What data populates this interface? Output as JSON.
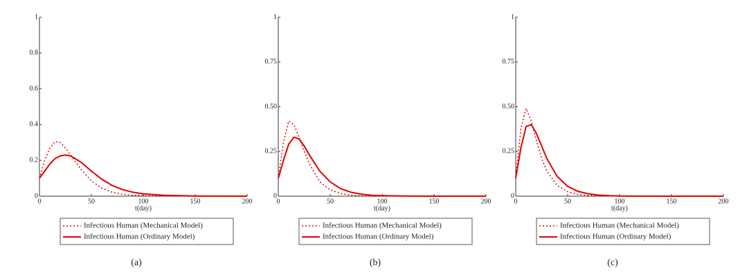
{
  "chart_data": [
    {
      "type": "line",
      "caption": "(a)",
      "xlabel": "t(day)",
      "x": [
        0,
        5,
        10,
        15,
        20,
        25,
        30,
        40,
        50,
        60,
        70,
        80,
        90,
        100,
        120,
        150,
        200
      ],
      "xlim": [
        0,
        200
      ],
      "xticks": [
        0,
        50,
        100,
        150,
        200
      ],
      "ylim": [
        0,
        1
      ],
      "yticks": [
        0,
        0.2,
        0.4,
        0.6,
        0.8,
        1
      ],
      "series": [
        {
          "name": "Infectious Human (Mechanical Model)",
          "color": "#e00000",
          "style": "dotted",
          "values": [
            0.1,
            0.2,
            0.27,
            0.305,
            0.3,
            0.27,
            0.23,
            0.15,
            0.085,
            0.045,
            0.022,
            0.011,
            0.005,
            0.003,
            0.001,
            0,
            0
          ]
        },
        {
          "name": "Infectious Human (Ordinary Model)",
          "color": "#e00000",
          "style": "solid",
          "values": [
            0.1,
            0.14,
            0.18,
            0.21,
            0.225,
            0.23,
            0.225,
            0.19,
            0.14,
            0.095,
            0.06,
            0.037,
            0.022,
            0.013,
            0.005,
            0.001,
            0
          ]
        }
      ]
    },
    {
      "type": "line",
      "caption": "(b)",
      "xlabel": "t(day)",
      "x": [
        0,
        5,
        10,
        15,
        20,
        25,
        30,
        40,
        50,
        60,
        70,
        80,
        90,
        100,
        120,
        150,
        200
      ],
      "xlim": [
        0,
        200
      ],
      "xticks": [
        0,
        50,
        100,
        150,
        200
      ],
      "ylim": [
        0,
        1
      ],
      "yticks": [
        0,
        0.25,
        {
          "value": 0.5,
          "label": "0.50"
        },
        0.75,
        1
      ],
      "series": [
        {
          "name": "Infectious Human (Mechanical Model)",
          "color": "#e00000",
          "style": "dotted",
          "values": [
            0.1,
            0.3,
            0.42,
            0.4,
            0.33,
            0.25,
            0.18,
            0.08,
            0.035,
            0.015,
            0.006,
            0.002,
            0.001,
            0,
            0,
            0,
            0
          ]
        },
        {
          "name": "Infectious Human (Ordinary Model)",
          "color": "#e00000",
          "style": "solid",
          "values": [
            0.1,
            0.2,
            0.29,
            0.33,
            0.32,
            0.28,
            0.23,
            0.14,
            0.08,
            0.042,
            0.022,
            0.011,
            0.005,
            0.003,
            0.001,
            0,
            0
          ]
        }
      ]
    },
    {
      "type": "line",
      "caption": "(c)",
      "xlabel": "t(day)",
      "x": [
        0,
        5,
        10,
        15,
        20,
        25,
        30,
        40,
        50,
        60,
        70,
        80,
        90,
        100,
        120,
        150,
        200
      ],
      "xlim": [
        0,
        200
      ],
      "xticks": [
        0,
        50,
        100,
        150,
        200
      ],
      "ylim": [
        0,
        1
      ],
      "yticks": [
        0,
        0.25,
        {
          "value": 0.5,
          "label": "0.50"
        },
        0.75,
        1
      ],
      "series": [
        {
          "name": "Infectious Human (Mechanical Model)",
          "color": "#e00000",
          "style": "dotted",
          "values": [
            0.1,
            0.38,
            0.49,
            0.42,
            0.31,
            0.21,
            0.14,
            0.06,
            0.025,
            0.01,
            0.004,
            0.002,
            0.001,
            0,
            0,
            0,
            0
          ]
        },
        {
          "name": "Infectious Human (Ordinary Model)",
          "color": "#e00000",
          "style": "solid",
          "values": [
            0.1,
            0.27,
            0.39,
            0.4,
            0.35,
            0.28,
            0.21,
            0.11,
            0.055,
            0.027,
            0.013,
            0.006,
            0.003,
            0.001,
            0,
            0,
            0
          ]
        }
      ]
    }
  ]
}
